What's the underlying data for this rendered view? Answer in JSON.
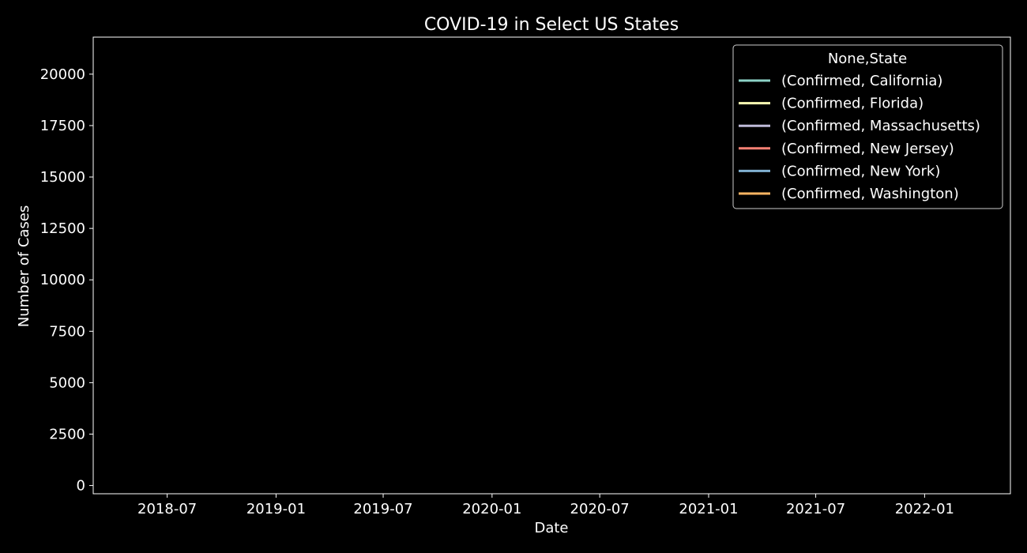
{
  "chart_data": {
    "type": "line",
    "title": "COVID-19 in Select US States",
    "xlabel": "Date",
    "ylabel": "Number of Cases",
    "x_ticks": [
      "2018-07",
      "2019-01",
      "2019-07",
      "2020-01",
      "2020-07",
      "2021-01",
      "2021-07",
      "2022-01"
    ],
    "y_ticks": [
      0,
      2500,
      5000,
      7500,
      10000,
      12500,
      15000,
      17500,
      20000
    ],
    "xlim": [
      "2018-02-26",
      "2022-05-26"
    ],
    "ylim": [
      -400,
      21800
    ],
    "grid": false,
    "legend_title": "None,State",
    "legend_position": "upper right",
    "series": [
      {
        "name": "(Confirmed, California)",
        "color": "#8dd3c7",
        "values": []
      },
      {
        "name": "(Confirmed, Florida)",
        "color": "#feffb3",
        "values": []
      },
      {
        "name": "(Confirmed, Massachusetts)",
        "color": "#bfbbd9",
        "values": []
      },
      {
        "name": "(Confirmed, New Jersey)",
        "color": "#fa8174",
        "values": []
      },
      {
        "name": "(Confirmed, New York)",
        "color": "#81b1d2",
        "values": []
      },
      {
        "name": "(Confirmed, Washington)",
        "color": "#fdb462",
        "values": []
      }
    ]
  }
}
